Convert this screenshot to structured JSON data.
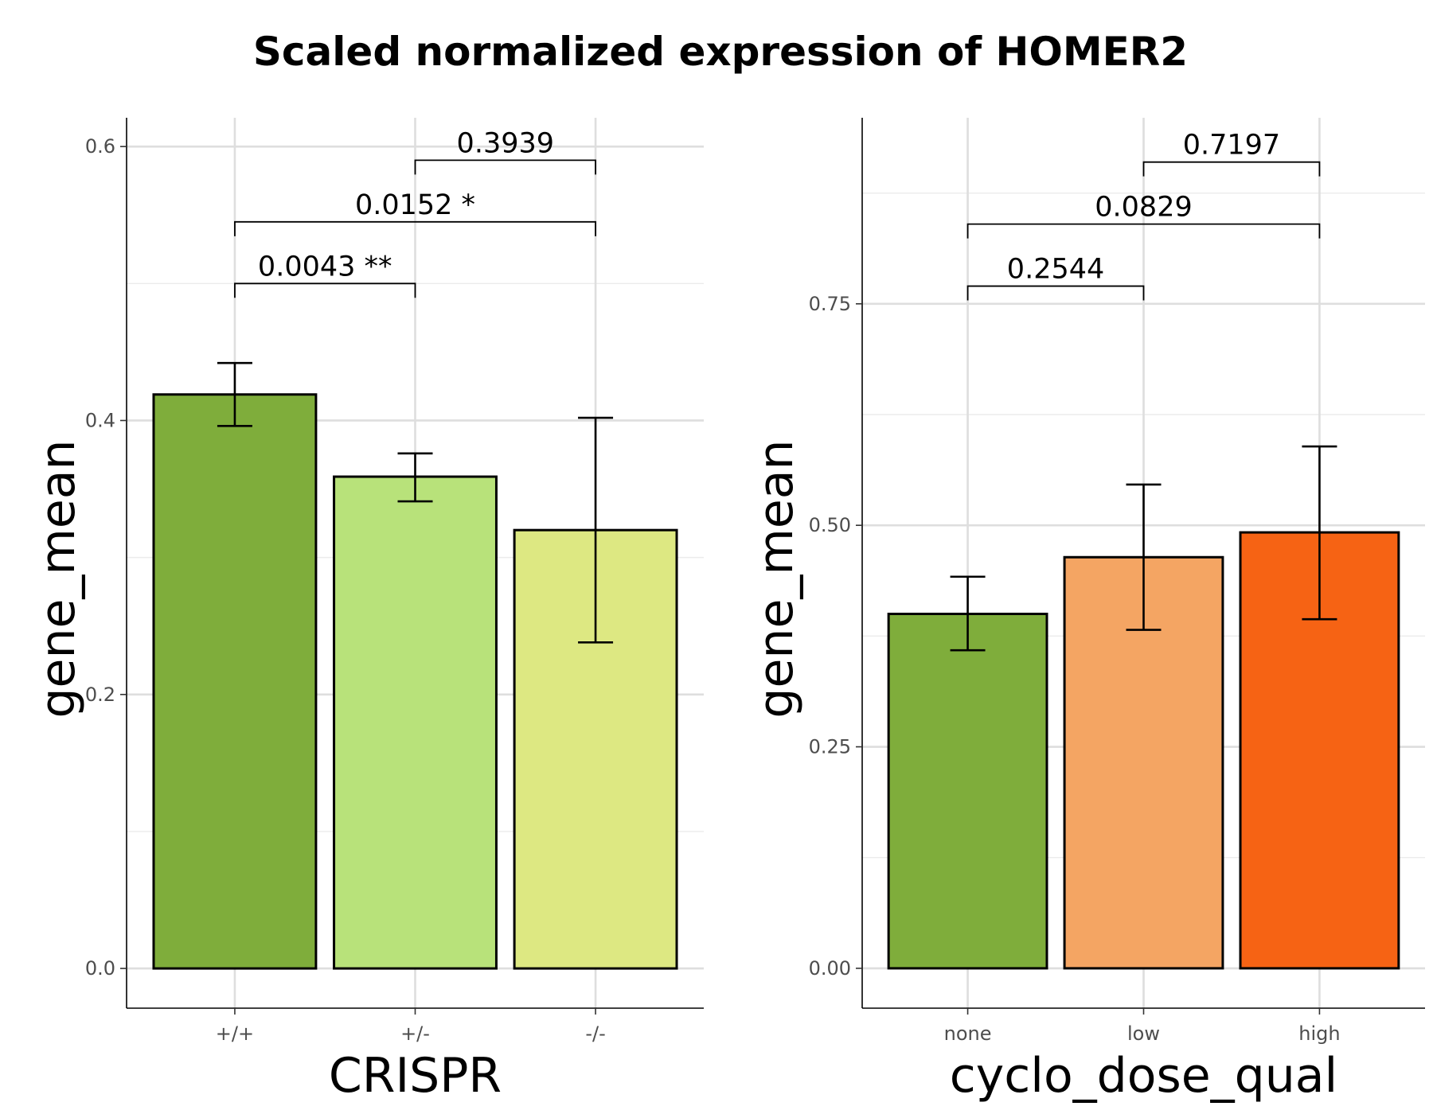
{
  "title": "Scaled normalized expression of HOMER2",
  "chart_data": [
    {
      "type": "bar",
      "xlabel": "CRISPR",
      "ylabel": "gene_mean",
      "categories": [
        "+/+",
        "+/-",
        "-/-"
      ],
      "values": [
        0.419,
        0.359,
        0.32
      ],
      "error_low": [
        0.396,
        0.341,
        0.238
      ],
      "error_high": [
        0.442,
        0.376,
        0.402
      ],
      "colors": [
        "#7fad3b",
        "#b8e27a",
        "#dde882"
      ],
      "ylim": [
        -0.029,
        0.621
      ],
      "yticks": [
        0.0,
        0.2,
        0.4,
        0.6
      ],
      "ytick_labels": [
        "0.0",
        "0.2",
        "0.4",
        "0.6"
      ],
      "grid": true,
      "comparisons": [
        {
          "from": 0,
          "to": 1,
          "y": 0.5,
          "label": "0.0043 **"
        },
        {
          "from": 0,
          "to": 2,
          "y": 0.545,
          "label": "0.0152 *"
        },
        {
          "from": 1,
          "to": 2,
          "y": 0.59,
          "label": "0.3939"
        }
      ]
    },
    {
      "type": "bar",
      "xlabel": "cyclo_dose_qual",
      "ylabel": "gene_mean",
      "categories": [
        "none",
        "low",
        "high"
      ],
      "values": [
        0.4,
        0.464,
        0.492
      ],
      "error_low": [
        0.359,
        0.382,
        0.394
      ],
      "error_high": [
        0.442,
        0.546,
        0.589
      ],
      "colors": [
        "#7fad3b",
        "#f4a563",
        "#f66314"
      ],
      "ylim": [
        -0.045,
        0.96
      ],
      "yticks": [
        0.0,
        0.25,
        0.5,
        0.75
      ],
      "ytick_labels": [
        "0.00",
        "0.25",
        "0.50",
        "0.75"
      ],
      "grid": true,
      "comparisons": [
        {
          "from": 0,
          "to": 1,
          "y": 0.77,
          "label": "0.2544"
        },
        {
          "from": 0,
          "to": 2,
          "y": 0.84,
          "label": "0.0829"
        },
        {
          "from": 1,
          "to": 2,
          "y": 0.91,
          "label": "0.7197"
        }
      ]
    }
  ]
}
